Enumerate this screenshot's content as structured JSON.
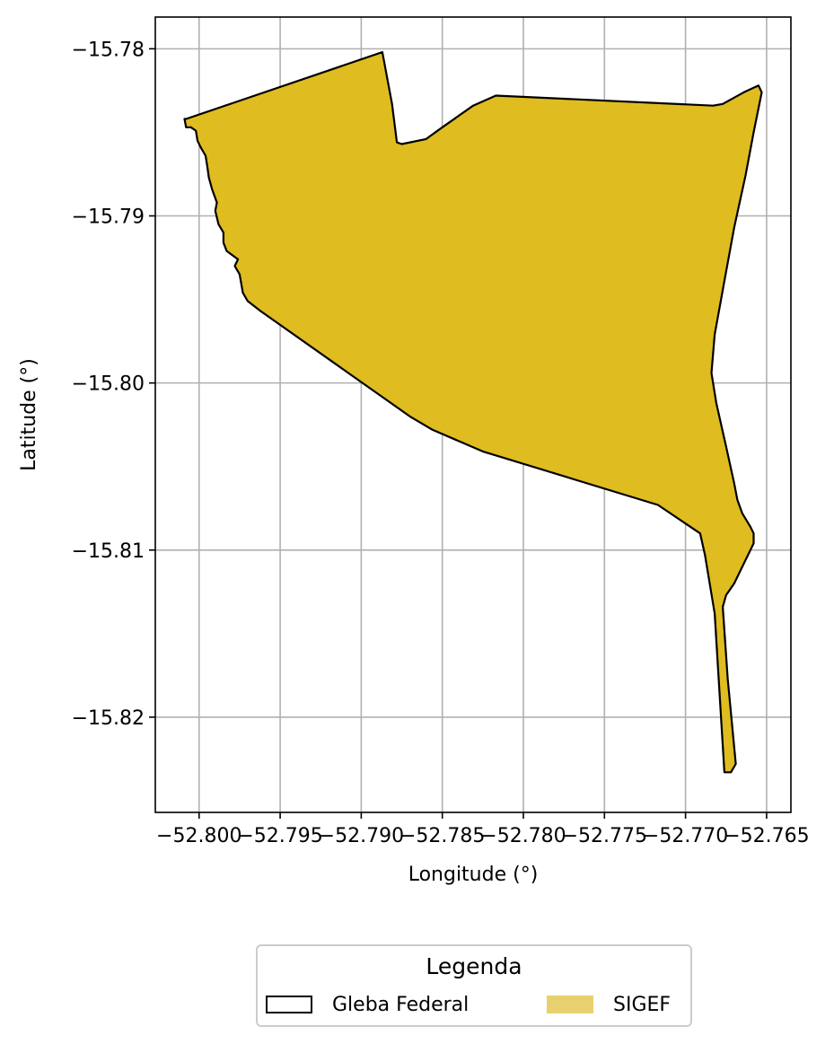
{
  "chart_data": {
    "type": "map",
    "xlabel": "Longitude (°)",
    "ylabel": "Latitude (°)",
    "xlim": [
      -52.8027,
      -52.7635
    ],
    "ylim": [
      -15.8257,
      -15.7781
    ],
    "grid": true,
    "x_ticks": [
      {
        "value": -52.8,
        "label": "−52.800"
      },
      {
        "value": -52.795,
        "label": "−52.795"
      },
      {
        "value": -52.79,
        "label": "−52.790"
      },
      {
        "value": -52.785,
        "label": "−52.785"
      },
      {
        "value": -52.78,
        "label": "−52.780"
      },
      {
        "value": -52.775,
        "label": "−52.775"
      },
      {
        "value": -52.77,
        "label": "−52.770"
      },
      {
        "value": -52.765,
        "label": "−52.765"
      }
    ],
    "y_ticks": [
      {
        "value": -15.78,
        "label": "−15.78"
      },
      {
        "value": -15.79,
        "label": "−15.79"
      },
      {
        "value": -15.8,
        "label": "−15.80"
      },
      {
        "value": -15.81,
        "label": "−15.81"
      },
      {
        "value": -15.82,
        "label": "−15.82"
      }
    ],
    "polygon": {
      "name": "SIGEF / Gleba Federal",
      "fill": "#dfbc20",
      "stroke": "#000000",
      "coordinates": [
        [
          -52.8008,
          -15.7842
        ],
        [
          -52.7887,
          -15.7802
        ],
        [
          -52.7881,
          -15.7833
        ],
        [
          -52.7878,
          -15.7856
        ],
        [
          -52.7875,
          -15.7857
        ],
        [
          -52.786,
          -15.7854
        ],
        [
          -52.785,
          -15.7847
        ],
        [
          -52.7831,
          -15.7834
        ],
        [
          -52.7817,
          -15.7828
        ],
        [
          -52.7683,
          -15.7834
        ],
        [
          -52.7677,
          -15.7833
        ],
        [
          -52.7664,
          -15.7826
        ],
        [
          -52.7655,
          -15.7822
        ],
        [
          -52.7653,
          -15.7826
        ],
        [
          -52.7658,
          -15.785
        ],
        [
          -52.7663,
          -15.7876
        ],
        [
          -52.767,
          -15.7907
        ],
        [
          -52.7676,
          -15.7939
        ],
        [
          -52.7682,
          -15.7971
        ],
        [
          -52.7684,
          -15.7994
        ],
        [
          -52.7681,
          -15.8012
        ],
        [
          -52.7675,
          -15.8038
        ],
        [
          -52.767,
          -15.806
        ],
        [
          -52.7668,
          -15.807
        ],
        [
          -52.7665,
          -15.8078
        ],
        [
          -52.766,
          -15.8086
        ],
        [
          -52.7658,
          -15.809
        ],
        [
          -52.7658,
          -15.8096
        ],
        [
          -52.767,
          -15.812
        ],
        [
          -52.7675,
          -15.8127
        ],
        [
          -52.7677,
          -15.8134
        ],
        [
          -52.7674,
          -15.8177
        ],
        [
          -52.7669,
          -15.8228
        ],
        [
          -52.7672,
          -15.8233
        ],
        [
          -52.7676,
          -15.8233
        ],
        [
          -52.7682,
          -15.8138
        ],
        [
          -52.7688,
          -15.8103
        ],
        [
          -52.7691,
          -15.809
        ],
        [
          -52.7717,
          -15.8073
        ],
        [
          -52.7825,
          -15.8041
        ],
        [
          -52.7856,
          -15.8028
        ],
        [
          -52.787,
          -15.802
        ],
        [
          -52.7962,
          -15.7957
        ],
        [
          -52.797,
          -15.7951
        ],
        [
          -52.7973,
          -15.7946
        ],
        [
          -52.7975,
          -15.7935
        ],
        [
          -52.7978,
          -15.793
        ],
        [
          -52.7976,
          -15.7926
        ],
        [
          -52.7983,
          -15.7921
        ],
        [
          -52.7985,
          -15.7916
        ],
        [
          -52.7985,
          -15.791
        ],
        [
          -52.7988,
          -15.7905
        ],
        [
          -52.799,
          -15.7897
        ],
        [
          -52.7989,
          -15.7892
        ],
        [
          -52.7992,
          -15.7884
        ],
        [
          -52.7994,
          -15.7877
        ],
        [
          -52.7995,
          -15.787
        ],
        [
          -52.7996,
          -15.7864
        ],
        [
          -52.7999,
          -15.7859
        ],
        [
          -52.8001,
          -15.7855
        ],
        [
          -52.8002,
          -15.7849
        ],
        [
          -52.8005,
          -15.7847
        ],
        [
          -52.8008,
          -15.7847
        ],
        [
          -52.8009,
          -15.7842
        ]
      ]
    }
  },
  "legend": {
    "title": "Legenda",
    "items": [
      {
        "label": "Gleba Federal",
        "style": "outline"
      },
      {
        "label": "SIGEF",
        "style": "fill",
        "color": "#e8d06e"
      }
    ]
  }
}
